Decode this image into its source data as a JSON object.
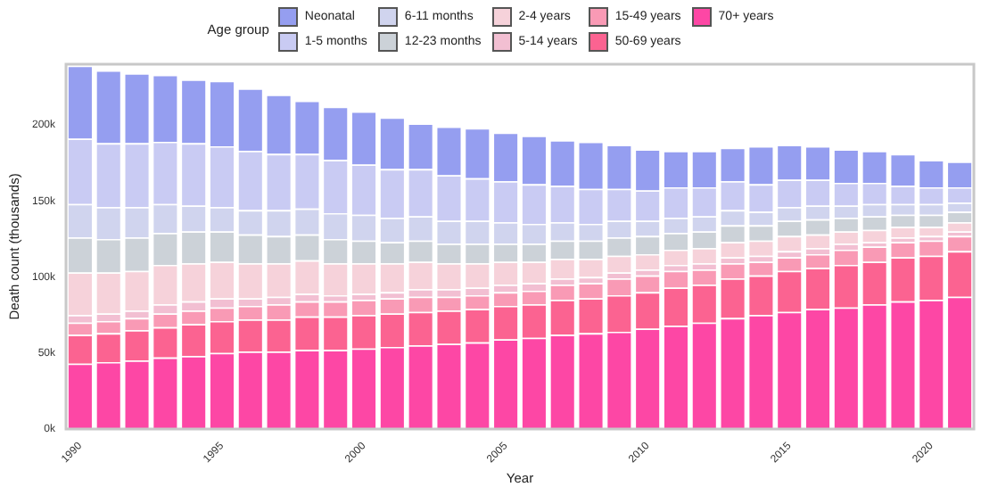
{
  "chart_data": {
    "type": "bar",
    "stacked": true,
    "xlabel": "Year",
    "ylabel": "Death count (thousands)",
    "legend_title": "Age group",
    "legend": "top",
    "categories": [
      "1990",
      null,
      null,
      null,
      null,
      "1995",
      null,
      null,
      null,
      null,
      "2000",
      null,
      null,
      null,
      null,
      "2005",
      null,
      null,
      null,
      null,
      "2010",
      null,
      null,
      null,
      null,
      "2015",
      null,
      null,
      null,
      null,
      "2020",
      null
    ],
    "ylim": [
      0,
      240
    ],
    "yticks": [
      {
        "value": 0,
        "label": "0k"
      },
      {
        "value": 50,
        "label": "50k"
      },
      {
        "value": 100,
        "label": "100k"
      },
      {
        "value": 150,
        "label": "150k"
      },
      {
        "value": 200,
        "label": "200k"
      }
    ],
    "series": [
      {
        "name": "70+ years",
        "color": "#fd47a5",
        "values": [
          43,
          44,
          45,
          47,
          48,
          50,
          51,
          51,
          52,
          52,
          53,
          54,
          55,
          56,
          57,
          59,
          60,
          62,
          63,
          64,
          66,
          68,
          70,
          73,
          75,
          77,
          79,
          80,
          82,
          84,
          85,
          87
        ]
      },
      {
        "name": "50-69 years",
        "color": "#fb6391",
        "values": [
          19,
          19,
          20,
          20,
          21,
          21,
          21,
          21,
          22,
          22,
          22,
          22,
          22,
          22,
          22,
          22,
          22,
          23,
          23,
          24,
          24,
          25,
          25,
          26,
          26,
          27,
          27,
          28,
          28,
          29,
          29,
          30
        ]
      },
      {
        "name": "15-49 years",
        "color": "#f99ab5",
        "values": [
          8,
          8,
          8,
          9,
          9,
          9,
          9,
          10,
          10,
          10,
          10,
          10,
          10,
          9,
          9,
          9,
          9,
          10,
          10,
          11,
          11,
          11,
          10,
          10,
          9,
          9,
          9,
          10,
          10,
          10,
          10,
          10
        ]
      },
      {
        "name": "5-14 years",
        "color": "#f2bfd2",
        "values": [
          5,
          5,
          5,
          6,
          6,
          6,
          5,
          5,
          5,
          4,
          4,
          4,
          5,
          5,
          5,
          5,
          5,
          4,
          4,
          4,
          4,
          4,
          4,
          4,
          4,
          4,
          4,
          4,
          3,
          3,
          3,
          3
        ]
      },
      {
        "name": "2-4 years",
        "color": "#f6d2da",
        "values": [
          28,
          27,
          26,
          26,
          25,
          24,
          23,
          22,
          22,
          21,
          20,
          19,
          18,
          17,
          16,
          15,
          14,
          13,
          12,
          11,
          10,
          10,
          10,
          10,
          10,
          10,
          9,
          8,
          8,
          7,
          6,
          6
        ]
      },
      {
        "name": "12-23 months",
        "color": "#ccd2d8",
        "values": [
          23,
          22,
          22,
          21,
          21,
          20,
          19,
          18,
          17,
          16,
          15,
          14,
          14,
          13,
          13,
          12,
          12,
          12,
          12,
          12,
          12,
          11,
          11,
          11,
          10,
          10,
          10,
          9,
          9,
          8,
          8,
          7
        ]
      },
      {
        "name": "6-11 months",
        "color": "#d0d4ee",
        "values": [
          22,
          21,
          20,
          19,
          17,
          16,
          16,
          17,
          17,
          17,
          17,
          16,
          16,
          15,
          15,
          14,
          13,
          12,
          11,
          11,
          10,
          10,
          10,
          10,
          9,
          9,
          9,
          8,
          8,
          7,
          7,
          6
        ]
      },
      {
        "name": "1-5 months",
        "color": "#c9cbf3",
        "values": [
          43,
          42,
          42,
          41,
          41,
          40,
          39,
          37,
          36,
          35,
          33,
          32,
          31,
          30,
          28,
          27,
          26,
          24,
          23,
          21,
          20,
          20,
          19,
          19,
          18,
          18,
          17,
          15,
          14,
          12,
          11,
          10
        ]
      },
      {
        "name": "Neonatal",
        "color": "#959ef0",
        "values": [
          48,
          48,
          46,
          44,
          42,
          43,
          41,
          39,
          35,
          35,
          35,
          34,
          30,
          32,
          33,
          32,
          32,
          30,
          31,
          29,
          27,
          24,
          24,
          22,
          25,
          23,
          22,
          22,
          21,
          21,
          18,
          17
        ]
      }
    ]
  }
}
